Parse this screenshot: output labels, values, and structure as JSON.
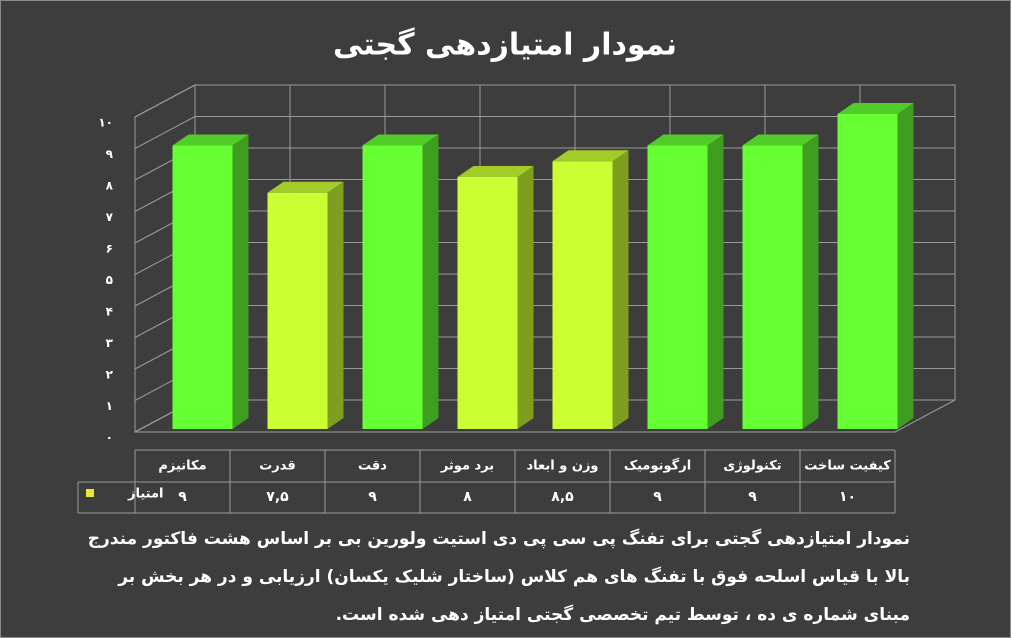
{
  "chart_data": {
    "type": "bar3d",
    "title": "نمودار امتیازدهی گجتی",
    "categories": [
      "مکانیزم",
      "قدرت",
      "دقت",
      "برد موثر",
      "وزن و ابعاد",
      "ارگونومیک",
      "تکنولوژی",
      "کیفیت ساخت"
    ],
    "series": [
      {
        "name": "امتیاز",
        "color": "#e8e83a",
        "colors": [
          "#66ff33",
          "#ccff33",
          "#66ff33",
          "#ccff33",
          "#ccff33",
          "#66ff33",
          "#66ff33",
          "#66ff33"
        ],
        "values": [
          9,
          7.5,
          9,
          8,
          8.5,
          9,
          9,
          10
        ],
        "value_labels": [
          "۹",
          "۷,۵",
          "۹",
          "۸",
          "۸,۵",
          "۹",
          "۹",
          "۱۰"
        ]
      }
    ],
    "ylim": [
      0,
      10
    ],
    "yticks": [
      {
        "value": 0,
        "label": "۰"
      },
      {
        "value": 1,
        "label": "۱"
      },
      {
        "value": 2,
        "label": "۲"
      },
      {
        "value": 3,
        "label": "۳"
      },
      {
        "value": 4,
        "label": "۴"
      },
      {
        "value": 5,
        "label": "۵"
      },
      {
        "value": 6,
        "label": "۶"
      },
      {
        "value": 7,
        "label": "۷"
      },
      {
        "value": 8,
        "label": "۸"
      },
      {
        "value": 9,
        "label": "۹"
      },
      {
        "value": 10,
        "label": "۱۰"
      }
    ],
    "grid": true,
    "description": "نمودار امتیازدهی گجتی برای تفنگ پی سی پی دی استیت ولورین بی بر اساس هشت فاکتور مندرج بالا با قیاس اسلحه فوق با تفنگ های هم کلاس (ساختار شلیک یکسان) ارزیابی و در هر بخش بر مبنای شماره ی ده ، توسط تیم تخصصی گجتی امتیاز دهی شده است."
  }
}
